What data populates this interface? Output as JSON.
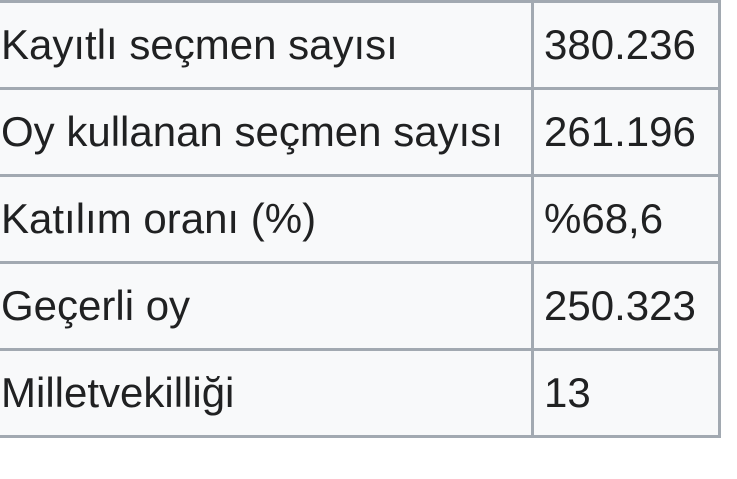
{
  "table": {
    "name": "election-statistics",
    "rows": [
      {
        "label": "Kayıtlı seçmen sayısı",
        "value": "380.236"
      },
      {
        "label": "Oy kullanan seçmen sayısı",
        "value": "261.196"
      },
      {
        "label": "Katılım oranı (%)",
        "value": "%68,6"
      },
      {
        "label": "Geçerli oy",
        "value": "250.323"
      },
      {
        "label": "Milletvekilliği",
        "value": "13"
      }
    ]
  },
  "colors": {
    "cell_background": "#f8f9fa",
    "border": "#a2a9b1",
    "text": "#202122",
    "page_background": "#ffffff"
  }
}
